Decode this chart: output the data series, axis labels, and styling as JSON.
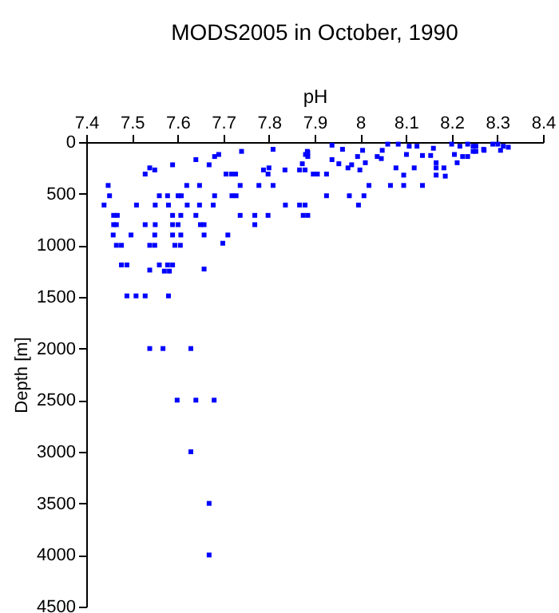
{
  "chart_data": {
    "type": "scatter",
    "title": "MODS2005 in October, 1990",
    "xlabel": "pH",
    "ylabel": "Depth [m]",
    "xlim": [
      7.4,
      8.4
    ],
    "xticks": [
      7.4,
      7.5,
      7.6,
      7.7,
      7.8,
      7.9,
      8,
      8.1,
      8.2,
      8.3,
      8.4
    ],
    "ylim": [
      4500,
      0
    ],
    "yticks": [
      0,
      500,
      1000,
      1500,
      2000,
      2500,
      3000,
      3500,
      4000,
      4500
    ],
    "marker": "square",
    "grid": false,
    "series": [
      {
        "color": "#0000ff",
        "x": [
          7.448,
          7.451,
          7.439,
          7.46,
          7.468,
          7.46,
          7.466,
          7.459,
          7.498,
          7.466,
          7.477,
          7.477,
          7.489,
          7.489,
          7.509,
          7.529,
          7.529,
          7.539,
          7.55,
          7.51,
          7.551,
          7.56,
          7.578,
          7.58,
          7.589,
          7.529,
          7.551,
          7.55,
          7.539,
          7.55,
          7.56,
          7.578,
          7.589,
          7.571,
          7.582,
          7.539,
          7.58,
          7.589,
          7.607,
          7.589,
          7.601,
          7.607,
          7.589,
          7.594,
          7.606,
          7.601,
          7.608,
          7.621,
          7.62,
          7.64,
          7.648,
          7.648,
          7.65,
          7.658,
          7.658,
          7.658,
          7.64,
          7.669,
          7.681,
          7.69,
          7.681,
          7.678,
          7.706,
          7.718,
          7.727,
          7.719,
          7.728,
          7.737,
          7.71,
          7.699,
          7.74,
          7.737,
          7.769,
          7.798,
          7.769,
          7.778,
          7.788,
          7.798,
          7.809,
          7.8,
          7.809,
          7.835,
          7.836,
          7.867,
          7.875,
          7.867,
          7.873,
          7.88,
          7.884,
          7.885,
          7.885,
          7.897,
          7.879,
          7.906,
          7.926,
          7.938,
          7.961,
          7.938,
          7.953,
          7.973,
          7.981,
          7.994,
          8.005,
          8.011,
          7.999,
          7.926,
          7.976,
          8.008,
          7.996,
          7.879,
          7.885,
          8.019,
          8.066,
          8.095,
          8.136,
          8.037,
          8.048,
          8.06,
          8.083,
          8.107,
          8.046,
          8.078,
          8.095,
          8.118,
          8.101,
          8.124,
          8.136,
          8.154,
          8.166,
          8.166,
          8.166,
          8.16,
          8.183,
          8.186,
          8.2,
          8.206,
          8.218,
          8.235,
          8.212,
          8.224,
          8.235,
          8.247,
          8.247,
          8.27,
          8.29,
          8.313,
          8.324,
          8.253,
          8.253,
          8.271,
          8.307,
          8.301,
          7.539,
          7.568,
          7.629,
          7.599,
          7.64,
          7.68,
          7.629,
          7.669,
          7.669
        ],
        "values": [
          420,
          520,
          610,
          710,
          710,
          800,
          800,
          900,
          900,
          1000,
          1000,
          1190,
          1190,
          1490,
          1490,
          1490,
          310,
          250,
          270,
          610,
          610,
          520,
          520,
          610,
          220,
          800,
          800,
          900,
          1000,
          1000,
          1190,
          1190,
          1190,
          1250,
          1250,
          1240,
          1490,
          710,
          710,
          800,
          800,
          900,
          900,
          1000,
          1000,
          520,
          520,
          610,
          420,
          710,
          420,
          610,
          800,
          800,
          900,
          1230,
          170,
          220,
          140,
          120,
          520,
          610,
          310,
          310,
          310,
          520,
          520,
          420,
          900,
          980,
          90,
          710,
          710,
          710,
          800,
          420,
          270,
          310,
          70,
          250,
          420,
          270,
          610,
          610,
          710,
          270,
          210,
          120,
          90,
          140,
          100,
          310,
          270,
          310,
          310,
          30,
          70,
          170,
          210,
          250,
          220,
          140,
          80,
          200,
          270,
          520,
          520,
          520,
          610,
          610,
          710,
          420,
          420,
          420,
          420,
          140,
          80,
          20,
          20,
          40,
          160,
          250,
          320,
          250,
          120,
          40,
          130,
          130,
          200,
          250,
          320,
          60,
          250,
          330,
          20,
          120,
          40,
          20,
          200,
          140,
          140,
          90,
          40,
          70,
          20,
          40,
          50,
          90,
          40,
          80,
          80,
          20,
          2000,
          2000,
          2000,
          2500,
          2500,
          2500,
          3000,
          3500,
          4000
        ]
      }
    ]
  }
}
